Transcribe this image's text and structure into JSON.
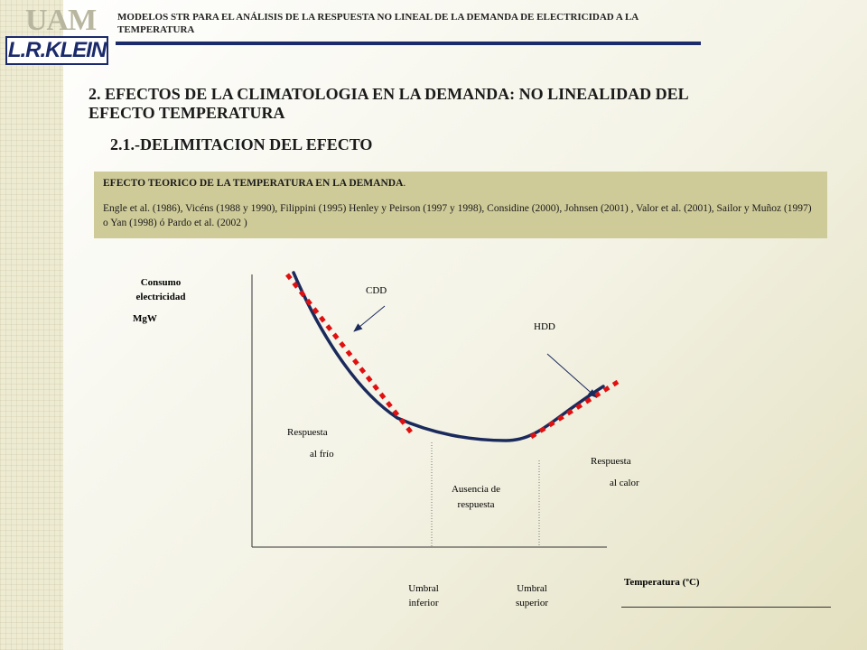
{
  "header": {
    "title": "MODELOS STR PARA EL ANÁLISIS DE LA RESPUESTA NO LINEAL DE LA DEMANDA DE ELECTRICIDAD A LA TEMPERATURA",
    "logo_top": "UAM",
    "logo_bottom": "L.R.KLEIN"
  },
  "main_title": "2. EFECTOS DE LA CLIMATOLOGIA EN LA DEMANDA: NO LINEALIDAD DEL EFECTO TEMPERATURA",
  "sub_title": "2.1.-DELIMITACION DEL EFECTO",
  "info_box": {
    "title": "EFECTO TEORICO DE LA TEMPERATURA  EN LA DEMANDA",
    "title_suffix": ".",
    "references": "Engle et al. (1986), Vicéns (1988 y 1990), Filippini (1995) Henley y Peirson (1997 y 1998), Considine (2000), Johnsen (2001) , Valor et al. (2001), Sailor y Muñoz (1997) o Yan (1998) ó Pardo et al. (2002 )"
  },
  "diagram": {
    "y_label_1": "Consumo",
    "y_label_2": "electricidad",
    "y_unit": "MgW",
    "cdd_label": "CDD",
    "hdd_label": "HDD",
    "cold_response_1": "Respuesta",
    "cold_response_2": "al frío",
    "no_response_1": "Ausencia de",
    "no_response_2": "respuesta",
    "heat_response_1": "Respuesta",
    "heat_response_2": "al calor",
    "lower_threshold_1": "Umbral",
    "lower_threshold_2": "inferior",
    "upper_threshold_1": "Umbral",
    "upper_threshold_2": "superior",
    "x_label": "Temperatura (ºC)",
    "curve_color": "#1b2a5c",
    "dash_color": "#e01010"
  }
}
